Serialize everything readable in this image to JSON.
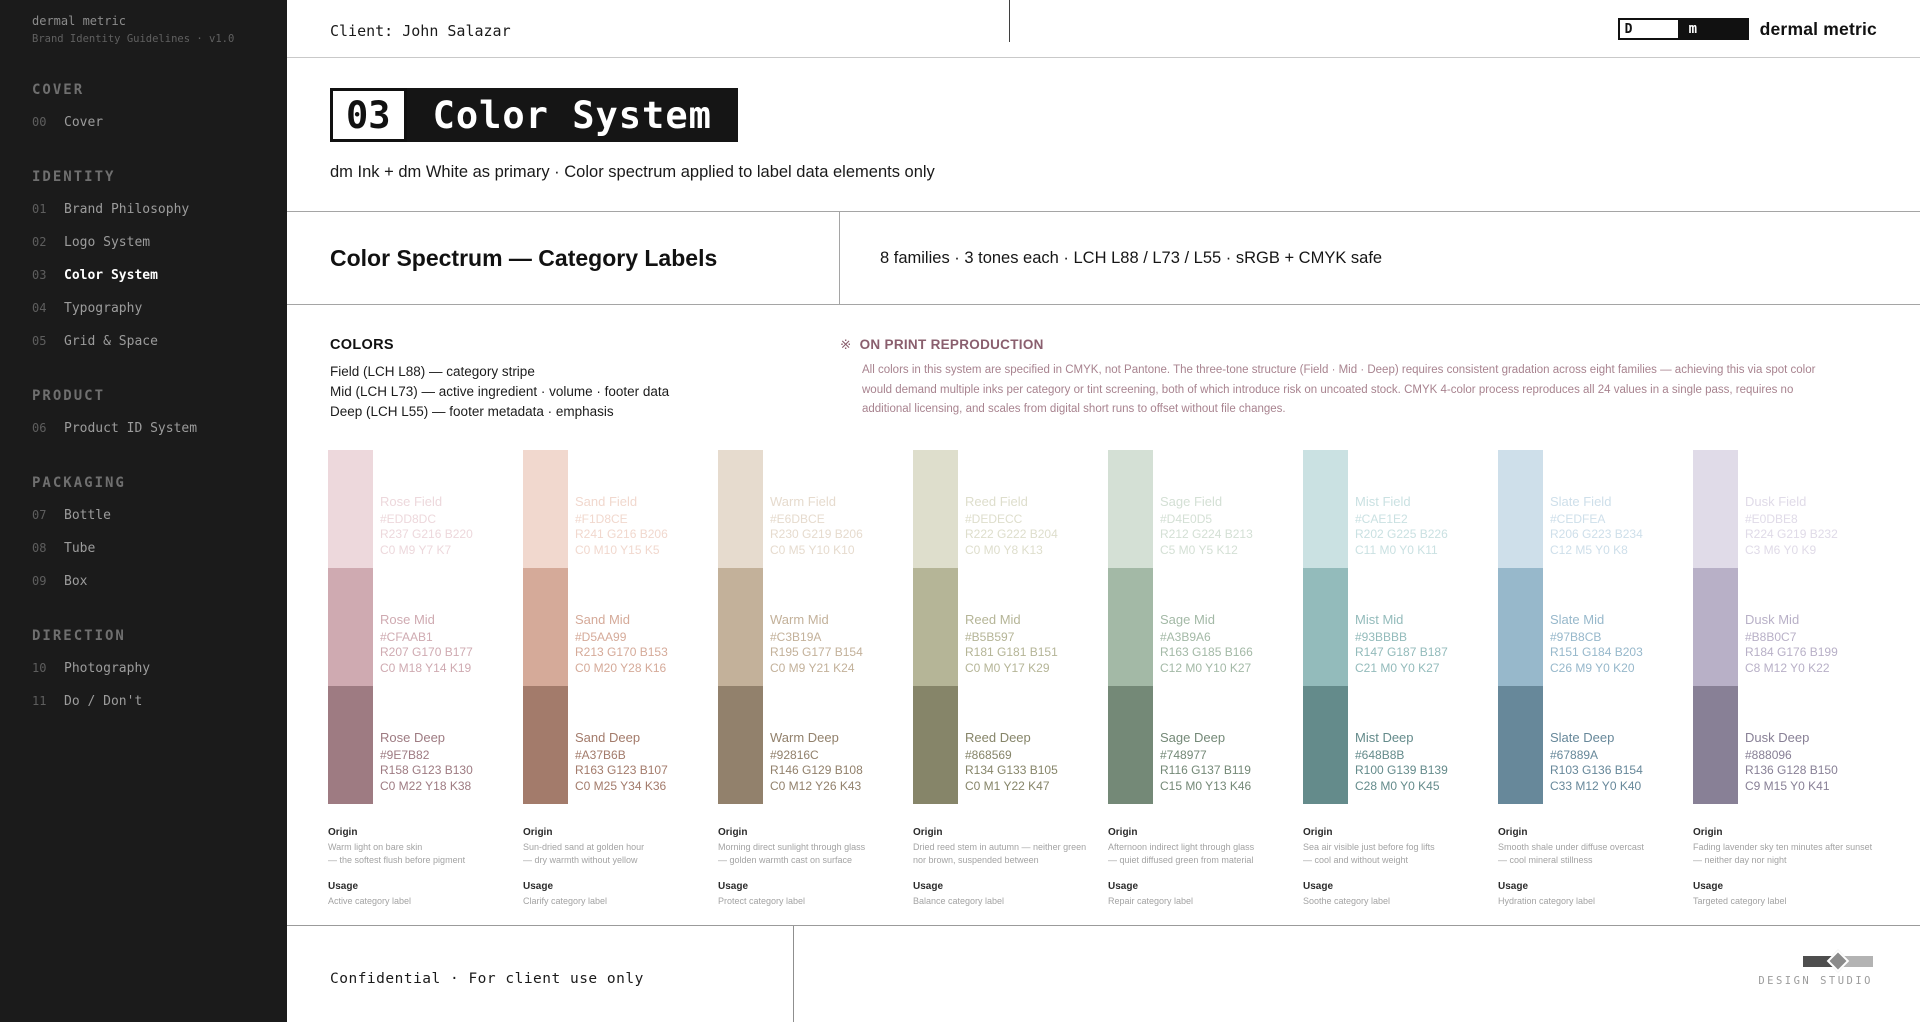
{
  "sidebar": {
    "brand_line1": "dermal metric",
    "brand_line2": "Brand Identity Guidelines · v1.0",
    "sections": [
      {
        "title": "COVER",
        "items": [
          {
            "num": "00",
            "label": "Cover",
            "active": false
          }
        ]
      },
      {
        "title": "IDENTITY",
        "items": [
          {
            "num": "01",
            "label": "Brand Philosophy",
            "active": false
          },
          {
            "num": "02",
            "label": "Logo System",
            "active": false
          },
          {
            "num": "03",
            "label": "Color System",
            "active": true
          },
          {
            "num": "04",
            "label": "Typography",
            "active": false
          },
          {
            "num": "05",
            "label": "Grid & Space",
            "active": false
          }
        ]
      },
      {
        "title": "PRODUCT",
        "items": [
          {
            "num": "06",
            "label": "Product ID System",
            "active": false
          }
        ]
      },
      {
        "title": "PACKAGING",
        "items": [
          {
            "num": "07",
            "label": "Bottle",
            "active": false
          },
          {
            "num": "08",
            "label": "Tube",
            "active": false
          },
          {
            "num": "09",
            "label": "Box",
            "active": false
          }
        ]
      },
      {
        "title": "DIRECTION",
        "items": [
          {
            "num": "10",
            "label": "Photography",
            "active": false
          },
          {
            "num": "11",
            "label": "Do / Don't",
            "active": false
          }
        ]
      }
    ]
  },
  "topbar": {
    "client": "Client: John Salazar",
    "logo_d": "D",
    "logo_m": "m",
    "logo_text": "dermal metric"
  },
  "header": {
    "number": "03",
    "title": "Color System",
    "subtitle": "dm Ink + dm White as primary · Color spectrum applied to label data elements only"
  },
  "section_bar": {
    "title": "Color Spectrum — Category Labels",
    "meta": "8 families · 3 tones each · LCH L88 / L73 / L55 · sRGB + CMYK safe"
  },
  "colors_intro": {
    "heading": "COLORS",
    "lines": [
      "Field (LCH L88) — category stripe",
      "Mid (LCH L73) — active ingredient · volume · footer data",
      "Deep (LCH L55) — footer metadata · emphasis"
    ]
  },
  "print_note": {
    "marker": "※",
    "heading": "ON PRINT REPRODUCTION",
    "accent": "#8a5f6e",
    "body_color": "#a8838f",
    "body": "All colors in this system are specified in CMYK, not Pantone. The three-tone structure (Field · Mid · Deep) requires consistent gradation across eight families — achieving this via spot color would demand multiple inks per category or tint screening, both of which introduce risk on uncoated stock. CMYK 4-color process reproduces all 24 values in a single pass, requires no additional licensing, and scales from digital short runs to offset without file changes."
  },
  "grid": {
    "origin_label": "Origin",
    "usage_label": "Usage",
    "families": [
      {
        "name": "Rose",
        "tones": [
          {
            "label": "Rose Field",
            "hex": "#EDD8DC",
            "rgb": "R237 G216 B220",
            "cmyk": "C0 M9 Y7 K7"
          },
          {
            "label": "Rose Mid",
            "hex": "#CFAAB1",
            "rgb": "R207 G170 B177",
            "cmyk": "C0 M18 Y14 K19"
          },
          {
            "label": "Rose Deep",
            "hex": "#9E7B82",
            "rgb": "R158 G123 B130",
            "cmyk": "C0 M22 Y18 K38"
          }
        ],
        "origin": [
          "Warm light on bare skin",
          "— the softest flush before pigment"
        ],
        "usage": "Active category label"
      },
      {
        "name": "Sand",
        "tones": [
          {
            "label": "Sand Field",
            "hex": "#F1D8CE",
            "rgb": "R241 G216 B206",
            "cmyk": "C0 M10 Y15 K5"
          },
          {
            "label": "Sand Mid",
            "hex": "#D5AA99",
            "rgb": "R213 G170 B153",
            "cmyk": "C0 M20 Y28 K16"
          },
          {
            "label": "Sand Deep",
            "hex": "#A37B6B",
            "rgb": "R163 G123 B107",
            "cmyk": "C0 M25 Y34 K36"
          }
        ],
        "origin": [
          "Sun-dried sand at golden hour",
          "— dry warmth without yellow"
        ],
        "usage": "Clarify category label"
      },
      {
        "name": "Warm",
        "tones": [
          {
            "label": "Warm Field",
            "hex": "#E6DBCE",
            "rgb": "R230 G219 B206",
            "cmyk": "C0 M5 Y10 K10"
          },
          {
            "label": "Warm Mid",
            "hex": "#C3B19A",
            "rgb": "R195 G177 B154",
            "cmyk": "C0 M9 Y21 K24"
          },
          {
            "label": "Warm Deep",
            "hex": "#92816C",
            "rgb": "R146 G129 B108",
            "cmyk": "C0 M12 Y26 K43"
          }
        ],
        "origin": [
          "Morning direct sunlight through glass",
          "— golden warmth cast on surface"
        ],
        "usage": "Protect category label"
      },
      {
        "name": "Reed",
        "tones": [
          {
            "label": "Reed Field",
            "hex": "#DEDECC",
            "rgb": "R222 G222 B204",
            "cmyk": "C0 M0 Y8 K13"
          },
          {
            "label": "Reed Mid",
            "hex": "#B5B597",
            "rgb": "R181 G181 B151",
            "cmyk": "C0 M0 Y17 K29"
          },
          {
            "label": "Reed Deep",
            "hex": "#868569",
            "rgb": "R134 G133 B105",
            "cmyk": "C0 M1 Y22 K47"
          }
        ],
        "origin": [
          "Dried reed stem in autumn — neither green",
          "nor brown, suspended between"
        ],
        "usage": "Balance category label"
      },
      {
        "name": "Sage",
        "tones": [
          {
            "label": "Sage Field",
            "hex": "#D4E0D5",
            "rgb": "R212 G224 B213",
            "cmyk": "C5 M0 Y5 K12"
          },
          {
            "label": "Sage Mid",
            "hex": "#A3B9A6",
            "rgb": "R163 G185 B166",
            "cmyk": "C12 M0 Y10 K27"
          },
          {
            "label": "Sage Deep",
            "hex": "#748977",
            "rgb": "R116 G137 B119",
            "cmyk": "C15 M0 Y13 K46"
          }
        ],
        "origin": [
          "Afternoon indirect light through glass",
          "— quiet diffused green from material"
        ],
        "usage": "Repair category label"
      },
      {
        "name": "Mist",
        "tones": [
          {
            "label": "Mist Field",
            "hex": "#CAE1E2",
            "rgb": "R202 G225 B226",
            "cmyk": "C11 M0 Y0 K11"
          },
          {
            "label": "Mist Mid",
            "hex": "#93BBBB",
            "rgb": "R147 G187 B187",
            "cmyk": "C21 M0 Y0 K27"
          },
          {
            "label": "Mist Deep",
            "hex": "#648B8B",
            "rgb": "R100 G139 B139",
            "cmyk": "C28 M0 Y0 K45"
          }
        ],
        "origin": [
          "Sea air visible just before fog lifts",
          "— cool and without weight"
        ],
        "usage": "Soothe category label"
      },
      {
        "name": "Slate",
        "tones": [
          {
            "label": "Slate Field",
            "hex": "#CEDFEA",
            "rgb": "R206 G223 B234",
            "cmyk": "C12 M5 Y0 K8"
          },
          {
            "label": "Slate Mid",
            "hex": "#97B8CB",
            "rgb": "R151 G184 B203",
            "cmyk": "C26 M9 Y0 K20"
          },
          {
            "label": "Slate Deep",
            "hex": "#67889A",
            "rgb": "R103 G136 B154",
            "cmyk": "C33 M12 Y0 K40"
          }
        ],
        "origin": [
          "Smooth shale under diffuse overcast",
          "— cool mineral stillness"
        ],
        "usage": "Hydration category label"
      },
      {
        "name": "Dusk",
        "tones": [
          {
            "label": "Dusk Field",
            "hex": "#E0DBE8",
            "rgb": "R224 G219 B232",
            "cmyk": "C3 M6 Y0 K9"
          },
          {
            "label": "Dusk Mid",
            "hex": "#B8B0C7",
            "rgb": "R184 G176 B199",
            "cmyk": "C8 M12 Y0 K22"
          },
          {
            "label": "Dusk Deep",
            "hex": "#888096",
            "rgb": "R136 G128 B150",
            "cmyk": "C9 M15 Y0 K41"
          }
        ],
        "origin": [
          "Fading lavender sky ten minutes after sunset",
          "— neither day nor night"
        ],
        "usage": "Targeted category label"
      }
    ]
  },
  "footer": {
    "left": "Confidential · For client use only",
    "studio": "DESIGN STUDIO"
  }
}
